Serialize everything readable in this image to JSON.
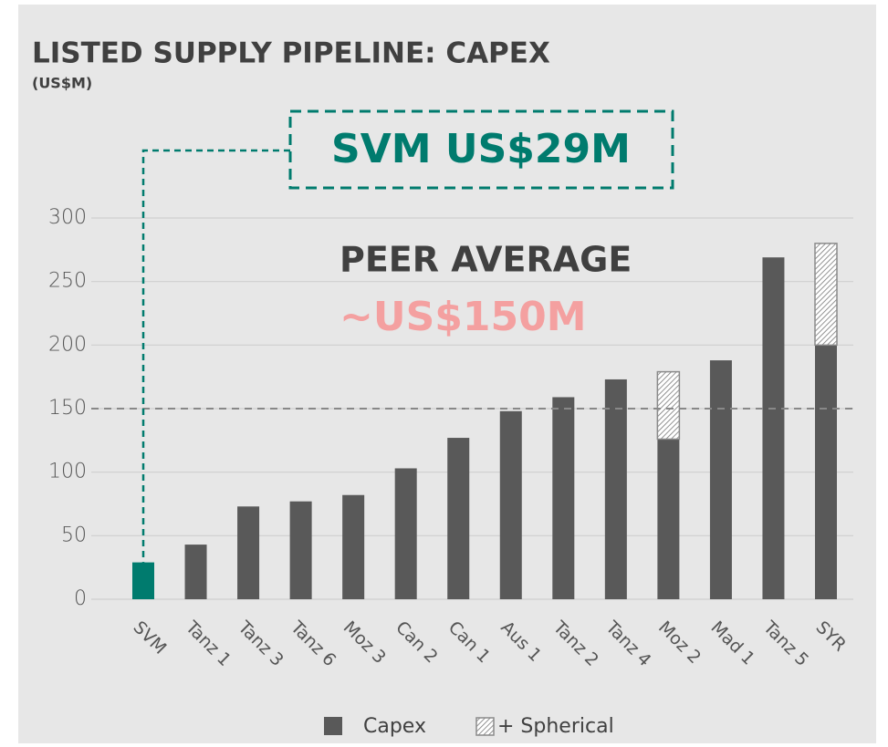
{
  "chart_data": {
    "type": "stacked_bar",
    "title": "LISTED SUPPLY PIPELINE: CAPEX",
    "subtitle": "(US$M)",
    "categories": [
      "SVM",
      "Tanz 1",
      "Tanz 3",
      "Tanz 6",
      "Moz 3",
      "Can 2",
      "Can 1",
      "Aus 1",
      "Tanz 2",
      "Tanz 4",
      "Moz 2",
      "Mad 1",
      "Tanz 5",
      "SYR"
    ],
    "series": [
      {
        "name": "Capex",
        "color": "#595959",
        "colors": [
          "#007b6e",
          "#595959",
          "#595959",
          "#595959",
          "#595959",
          "#595959",
          "#595959",
          "#595959",
          "#595959",
          "#595959",
          "#595959",
          "#595959",
          "#595959",
          "#595959"
        ],
        "values": [
          29,
          43,
          73,
          77,
          82,
          103,
          127,
          148,
          159,
          173,
          126,
          188,
          269,
          200
        ]
      },
      {
        "name": "+ Spherical",
        "color": "hatch",
        "values": [
          null,
          null,
          null,
          null,
          null,
          null,
          null,
          null,
          null,
          null,
          53,
          null,
          null,
          80
        ]
      }
    ],
    "ylim": [
      0,
      300
    ],
    "yticks": [
      0,
      50,
      100,
      150,
      200,
      250,
      300
    ],
    "grid": true,
    "annotations": {
      "callout": "SVM US$29M",
      "callout_color": "#007b6e",
      "average_title": "PEER AVERAGE",
      "average_label": "~US$150M",
      "average_value": 150
    }
  }
}
